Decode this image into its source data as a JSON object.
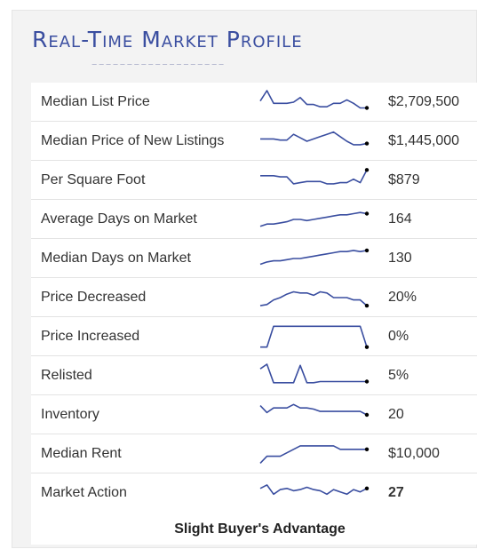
{
  "title": "Real-Time Market Profile",
  "colors": {
    "title": "#3a4ea0",
    "sparkline": "#3a4ea0",
    "endpoint": "#000000"
  },
  "rows": [
    {
      "label": "Median List Price",
      "value": "$2,709,500",
      "trend": [
        0.45,
        0.0,
        0.55,
        0.55,
        0.55,
        0.5,
        0.3,
        0.6,
        0.6,
        0.7,
        0.7,
        0.55,
        0.55,
        0.4,
        0.55,
        0.75,
        0.75
      ]
    },
    {
      "label": "Median Price of New Listings",
      "value": "$1,445,000",
      "trend": [
        0.4,
        0.4,
        0.4,
        0.45,
        0.45,
        0.2,
        0.35,
        0.5,
        0.4,
        0.3,
        0.2,
        0.1,
        0.3,
        0.5,
        0.65,
        0.65,
        0.6
      ]
    },
    {
      "label": "Per Square Foot",
      "value": "$879",
      "trend": [
        0.3,
        0.3,
        0.3,
        0.35,
        0.35,
        0.65,
        0.6,
        0.55,
        0.55,
        0.55,
        0.65,
        0.65,
        0.6,
        0.6,
        0.45,
        0.6,
        0.05
      ]
    },
    {
      "label": "Average Days on Market",
      "value": "164",
      "trend": [
        0.8,
        0.7,
        0.7,
        0.65,
        0.6,
        0.5,
        0.5,
        0.55,
        0.5,
        0.45,
        0.4,
        0.35,
        0.3,
        0.3,
        0.25,
        0.2,
        0.25
      ]
    },
    {
      "label": "Median Days on Market",
      "value": "130",
      "trend": [
        0.75,
        0.65,
        0.6,
        0.6,
        0.55,
        0.5,
        0.5,
        0.45,
        0.4,
        0.35,
        0.3,
        0.25,
        0.2,
        0.2,
        0.15,
        0.2,
        0.15
      ]
    },
    {
      "label": "Price Decreased",
      "value": "20%",
      "trend": [
        0.85,
        0.8,
        0.6,
        0.5,
        0.35,
        0.25,
        0.3,
        0.3,
        0.4,
        0.25,
        0.3,
        0.5,
        0.5,
        0.5,
        0.6,
        0.6,
        0.85
      ]
    },
    {
      "label": "Price Increased",
      "value": "0%",
      "trend": [
        0.95,
        0.95,
        0.05,
        0.05,
        0.05,
        0.05,
        0.05,
        0.05,
        0.05,
        0.05,
        0.05,
        0.05,
        0.05,
        0.05,
        0.05,
        0.05,
        0.95
      ]
    },
    {
      "label": "Relisted",
      "value": "5%",
      "trend": [
        0.2,
        0.0,
        0.8,
        0.8,
        0.8,
        0.8,
        0.05,
        0.8,
        0.8,
        0.75,
        0.75,
        0.75,
        0.75,
        0.75,
        0.75,
        0.75,
        0.75
      ]
    },
    {
      "label": "Inventory",
      "value": "20",
      "trend": [
        0.1,
        0.4,
        0.2,
        0.2,
        0.2,
        0.05,
        0.2,
        0.2,
        0.25,
        0.35,
        0.35,
        0.35,
        0.35,
        0.35,
        0.35,
        0.35,
        0.5
      ]
    },
    {
      "label": "Median Rent",
      "value": "$10,000",
      "trend": [
        0.9,
        0.6,
        0.6,
        0.6,
        0.45,
        0.3,
        0.15,
        0.15,
        0.15,
        0.15,
        0.15,
        0.15,
        0.3,
        0.3,
        0.3,
        0.3,
        0.3
      ]
    },
    {
      "label": "Market Action",
      "value": "27",
      "trend": [
        0.3,
        0.15,
        0.55,
        0.35,
        0.3,
        0.4,
        0.35,
        0.25,
        0.35,
        0.4,
        0.55,
        0.35,
        0.45,
        0.55,
        0.35,
        0.45,
        0.3
      ]
    }
  ],
  "footer": "Slight Buyer's Advantage"
}
